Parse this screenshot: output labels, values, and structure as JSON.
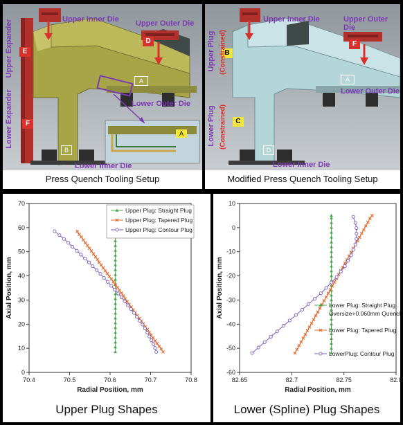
{
  "top": {
    "left": {
      "caption": "Press Quench Tooling Setup",
      "labels": {
        "upper_inner_die": "Upper Inner Die",
        "upper_outer_die": "Upper Outer Die",
        "upper_expander": "Upper Expander",
        "lower_expander": "Lower Expander",
        "lower_outer_die": "Lower Outer Die",
        "lower_inner_die": "Lower Inner Die",
        "tag_a": "A",
        "tag_a2": "A",
        "tag_b": "B",
        "force_d": "D",
        "force_e": "E",
        "force_f": "F"
      }
    },
    "right": {
      "caption": "Modified Press Quench Tooling Setup",
      "labels": {
        "upper_inner_die": "Upper Inner Die",
        "upper_outer_die": "Upper Outer Die",
        "upper_plug": "Upper Plug",
        "upper_constrained": "(Constrained)",
        "lower_plug": "Lower Plug",
        "lower_constrained": "(Constrained)",
        "lower_outer_die": "Lower Outer Die",
        "lower_inner_die": "Lower Inner Die",
        "tag_a": "A",
        "tag_d": "D",
        "force_b": "B",
        "force_c": "C",
        "force_f": "F"
      }
    }
  },
  "colors": {
    "yellow_part": "#a8a548",
    "blue_part": "#b5d6d9",
    "force_red": "#d8322c",
    "force_yellow": "#f4e73a",
    "label_purple": "#7b3ab2",
    "straight": "#4aa64a",
    "tapered": "#e1692c",
    "contour": "#7b5bb5"
  },
  "chart_data": [
    {
      "type": "line",
      "caption": "Upper Plug Shapes",
      "xlabel": "Radial Position, mm",
      "ylabel": "Axial Position, mm",
      "xlim": [
        70.4,
        70.8
      ],
      "ylim": [
        0,
        70
      ],
      "xticks": [
        "70.4",
        "70.5",
        "70.6",
        "70.7",
        "70.8"
      ],
      "yticks": [
        "0",
        "10",
        "20",
        "30",
        "40",
        "50",
        "60",
        "70"
      ],
      "grid": false,
      "legend": "top-right",
      "series": [
        {
          "name": "Upper Plug: Straight Plug",
          "color": "#4aa64a",
          "marker": "triangle",
          "x": [
            70.613,
            70.613,
            70.613,
            70.613,
            70.613,
            70.613,
            70.613,
            70.613,
            70.613,
            70.613,
            70.613,
            70.613,
            70.613,
            70.613,
            70.613,
            70.613,
            70.613,
            70.613,
            70.613,
            70.613,
            70.613,
            70.613,
            70.613,
            70.613,
            70.613,
            70.613
          ],
          "y": [
            8.5,
            10.5,
            12.5,
            14.5,
            16.5,
            18.5,
            20.5,
            22.5,
            24.5,
            26.5,
            28.5,
            30.5,
            32.5,
            34.5,
            36.5,
            38.5,
            40.5,
            42.5,
            44.5,
            46.5,
            48.5,
            50.5,
            52.5,
            54.5,
            56.5,
            58.5
          ]
        },
        {
          "name": "Upper Plug: Tapered Plug",
          "color": "#e1692c",
          "marker": "x",
          "x": [
            70.731,
            70.726,
            70.721,
            70.716,
            70.711,
            70.706,
            70.701,
            70.697,
            70.692,
            70.687,
            70.682,
            70.677,
            70.672,
            70.667,
            70.662,
            70.657,
            70.652,
            70.647,
            70.642,
            70.637,
            70.633,
            70.628,
            70.623,
            70.618,
            70.613,
            70.608,
            70.603,
            70.598,
            70.593,
            70.588,
            70.583,
            70.578,
            70.573,
            70.569,
            70.564,
            70.559,
            70.554,
            70.549,
            70.544,
            70.539,
            70.534,
            70.529,
            70.524,
            70.519
          ],
          "y": [
            8.5,
            9.7,
            10.8,
            12,
            13.1,
            14.3,
            15.5,
            16.6,
            17.8,
            18.9,
            20.1,
            21.3,
            22.4,
            23.6,
            24.7,
            25.9,
            27.1,
            28.2,
            29.4,
            30.5,
            31.7,
            32.9,
            34,
            35.2,
            36.3,
            37.5,
            38.7,
            39.8,
            41,
            42.1,
            43.3,
            44.5,
            45.6,
            46.8,
            47.9,
            49.1,
            50.3,
            51.4,
            52.6,
            53.7,
            54.9,
            56.1,
            57.2,
            58.4
          ]
        },
        {
          "name": "Upper Plug: Contour Plug",
          "color": "#7b5bb5",
          "marker": "circle",
          "x": [
            70.714,
            70.711,
            70.707,
            70.702,
            70.697,
            70.692,
            70.686,
            70.68,
            70.673,
            70.666,
            70.659,
            70.652,
            70.644,
            70.636,
            70.628,
            70.62,
            70.611,
            70.603,
            70.594,
            70.585,
            70.576,
            70.567,
            70.557,
            70.548,
            70.538,
            70.528,
            70.518,
            70.507,
            70.497,
            70.486,
            70.475,
            70.463
          ],
          "y": [
            8.5,
            10.1,
            11.7,
            13.3,
            14.9,
            16.5,
            18.2,
            19.8,
            21.4,
            23,
            24.6,
            26.2,
            27.8,
            29.5,
            31.1,
            32.7,
            34.3,
            35.9,
            37.5,
            39.1,
            40.8,
            42.4,
            44,
            45.6,
            47.2,
            48.8,
            50.4,
            52.1,
            53.7,
            55.3,
            56.9,
            58.5
          ]
        }
      ]
    },
    {
      "type": "line",
      "caption": "Lower (Spline) Plug Shapes",
      "xlabel": "Radial Position, mm",
      "ylabel": "Axial Position, mm",
      "xlim": [
        82.65,
        82.8
      ],
      "ylim": [
        -60,
        10
      ],
      "xticks": [
        "82.65",
        "82.7",
        "82.75",
        "82.8"
      ],
      "yticks": [
        "-60",
        "-50",
        "-40",
        "-30",
        "-20",
        "-10",
        "0",
        "10"
      ],
      "grid": false,
      "legend": "right",
      "series": [
        {
          "name": "Lower Plug: Straight Plug Oversize+0.060mm Quench",
          "name_line1": "Lower Plug: Straight Plug",
          "name_line2": "Oversize+0.060mm Quench",
          "color": "#4aa64a",
          "marker": "triangle",
          "x": [
            82.738,
            82.738,
            82.738,
            82.738,
            82.738,
            82.738,
            82.738,
            82.738,
            82.738,
            82.738,
            82.738,
            82.738,
            82.738,
            82.738,
            82.738,
            82.738,
            82.738,
            82.738,
            82.738,
            82.738,
            82.738,
            82.738,
            82.738,
            82.738,
            82.738,
            82.738,
            82.738,
            82.738,
            82.738,
            82.738
          ],
          "y": [
            -52,
            -50,
            -48,
            -46,
            -44,
            -42,
            -40,
            -38,
            -36,
            -34,
            -32,
            -30,
            -28,
            -26,
            -24,
            -22,
            -20,
            -18,
            -16,
            -14,
            -12,
            -10,
            -8,
            -6,
            -4,
            -2,
            0,
            2,
            4,
            5
          ]
        },
        {
          "name": "Lower Plug: Tapered Plug",
          "color": "#e1692c",
          "marker": "x",
          "x": [
            82.703,
            82.705,
            82.707,
            82.709,
            82.711,
            82.713,
            82.715,
            82.717,
            82.719,
            82.721,
            82.723,
            82.725,
            82.727,
            82.729,
            82.731,
            82.733,
            82.735,
            82.737,
            82.739,
            82.741,
            82.743,
            82.745,
            82.747,
            82.749,
            82.751,
            82.753,
            82.755,
            82.757,
            82.759,
            82.761,
            82.763,
            82.765,
            82.767,
            82.769,
            82.771,
            82.773,
            82.775,
            82.777
          ],
          "y": [
            -52,
            -50.5,
            -48.9,
            -47.4,
            -45.8,
            -44.3,
            -42.7,
            -41.2,
            -39.6,
            -38.1,
            -36.5,
            -35,
            -33.4,
            -31.9,
            -30.3,
            -28.8,
            -27.2,
            -25.7,
            -24.1,
            -22.6,
            -21,
            -19.5,
            -17.9,
            -16.4,
            -14.8,
            -13.3,
            -11.7,
            -10.2,
            -8.6,
            -7.1,
            -5.5,
            -4,
            -2.4,
            -0.9,
            0.7,
            2.2,
            3.8,
            5
          ]
        },
        {
          "name": "LowerPlug: Contour Plug",
          "color": "#7b5bb5",
          "marker": "circle",
          "x": [
            82.662,
            82.668,
            82.674,
            82.68,
            82.686,
            82.692,
            82.698,
            82.704,
            82.71,
            82.716,
            82.722,
            82.728,
            82.733,
            82.738,
            82.743,
            82.747,
            82.751,
            82.754,
            82.757,
            82.759,
            82.761,
            82.762,
            82.762,
            82.762,
            82.761,
            82.759
          ],
          "y": [
            -52,
            -49.7,
            -47.5,
            -45.2,
            -43,
            -40.7,
            -38.5,
            -36.2,
            -34,
            -31.7,
            -29.5,
            -27.2,
            -25,
            -22.7,
            -20.5,
            -18.2,
            -16,
            -13.7,
            -11.5,
            -9.2,
            -7,
            -4.7,
            -2.5,
            -0.2,
            2,
            4.5
          ]
        }
      ]
    }
  ]
}
